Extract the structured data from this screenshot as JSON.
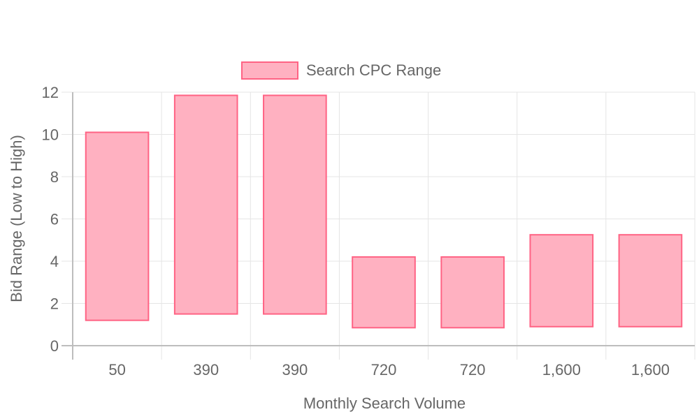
{
  "chart_data": {
    "type": "bar",
    "variant": "floating-range",
    "categories": [
      "50",
      "390",
      "390",
      "720",
      "720",
      "1,600",
      "1,600"
    ],
    "series": [
      {
        "name": "Search CPC Range",
        "ranges": [
          [
            1.2,
            10.1
          ],
          [
            1.5,
            11.85
          ],
          [
            1.5,
            11.85
          ],
          [
            0.85,
            4.2
          ],
          [
            0.85,
            4.2
          ],
          [
            0.9,
            5.25
          ],
          [
            0.9,
            5.25
          ]
        ],
        "fill_color": "#ffb1c1",
        "border_color": "#ff6384"
      }
    ],
    "xlabel": "Monthly Search Volume",
    "ylabel": "Bid Range (Low to High)",
    "ylim": [
      0,
      12
    ],
    "yticks": [
      "0",
      "2",
      "4",
      "6",
      "8",
      "10",
      "12"
    ],
    "grid": true,
    "legend_position": "top-center"
  },
  "colors": {
    "grid": "#e5e5e5",
    "axis": "#bdbdbd",
    "text": "#666666"
  }
}
